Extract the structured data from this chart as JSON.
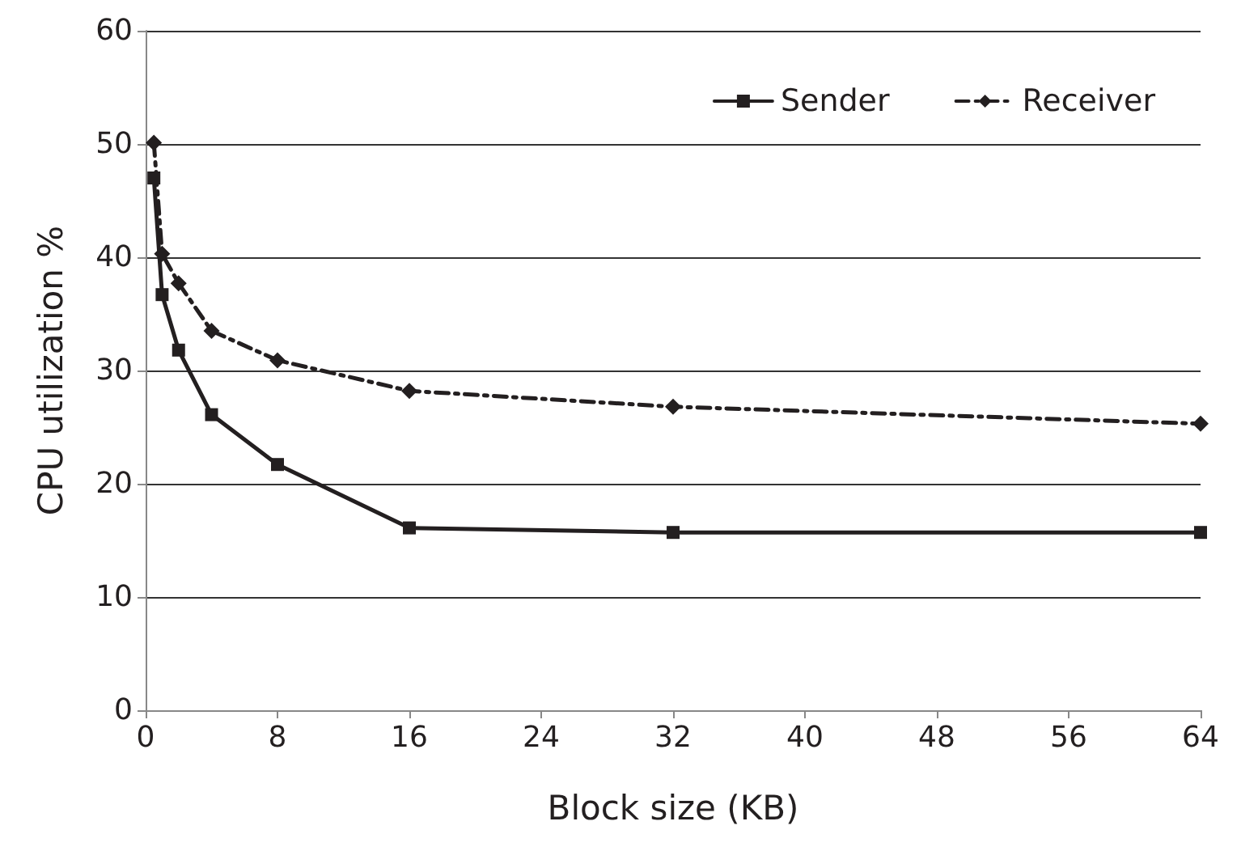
{
  "chart_data": {
    "type": "line",
    "xlabel": "Block size (KB)",
    "ylabel": "CPU utilization %",
    "x": [
      0.5,
      1,
      2,
      4,
      8,
      16,
      32,
      64
    ],
    "series": [
      {
        "name": "Sender",
        "color": "#231f20",
        "values": [
          47.0,
          36.7,
          31.8,
          26.1,
          21.7,
          16.1,
          15.7,
          15.7
        ],
        "marker": "square",
        "line_style": "solid"
      },
      {
        "name": "Receiver",
        "color": "#231f20",
        "values": [
          50.1,
          40.3,
          37.7,
          33.5,
          30.9,
          28.2,
          26.8,
          25.3
        ],
        "marker": "diamond",
        "line_style": "dashed"
      }
    ],
    "xlim": [
      0,
      64
    ],
    "xticks": [
      0,
      8,
      16,
      24,
      32,
      40,
      48,
      56,
      64
    ],
    "ylim": [
      0,
      60
    ],
    "yticks": [
      0,
      10,
      20,
      30,
      40,
      50,
      60
    ],
    "grid": "y",
    "legend": "top right"
  }
}
